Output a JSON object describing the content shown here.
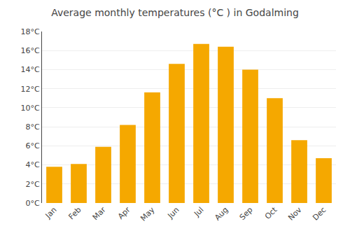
{
  "chart_data": {
    "type": "bar",
    "title": "Average monthly temperatures (°C ) in Godalming",
    "categories": [
      "Jan",
      "Feb",
      "Mar",
      "Apr",
      "May",
      "Jun",
      "Jul",
      "Aug",
      "Sep",
      "Oct",
      "Nov",
      "Dec"
    ],
    "values": [
      3.8,
      4.1,
      5.9,
      8.2,
      11.6,
      14.6,
      16.7,
      16.4,
      14.0,
      11.0,
      6.6,
      4.7
    ],
    "color": "#F5A800",
    "ylim": [
      0,
      18
    ],
    "yticks": [
      {
        "value": 0,
        "label": "0°C"
      },
      {
        "value": 2,
        "label": "2°C"
      },
      {
        "value": 4,
        "label": "4°C"
      },
      {
        "value": 6,
        "label": "6°C"
      },
      {
        "value": 8,
        "label": "8°C"
      },
      {
        "value": 10,
        "label": "10°C"
      },
      {
        "value": 12,
        "label": "12°C"
      },
      {
        "value": 14,
        "label": "14°C"
      },
      {
        "value": 16,
        "label": "16°C"
      },
      {
        "value": 18,
        "label": "18°C"
      }
    ],
    "grid": true
  }
}
